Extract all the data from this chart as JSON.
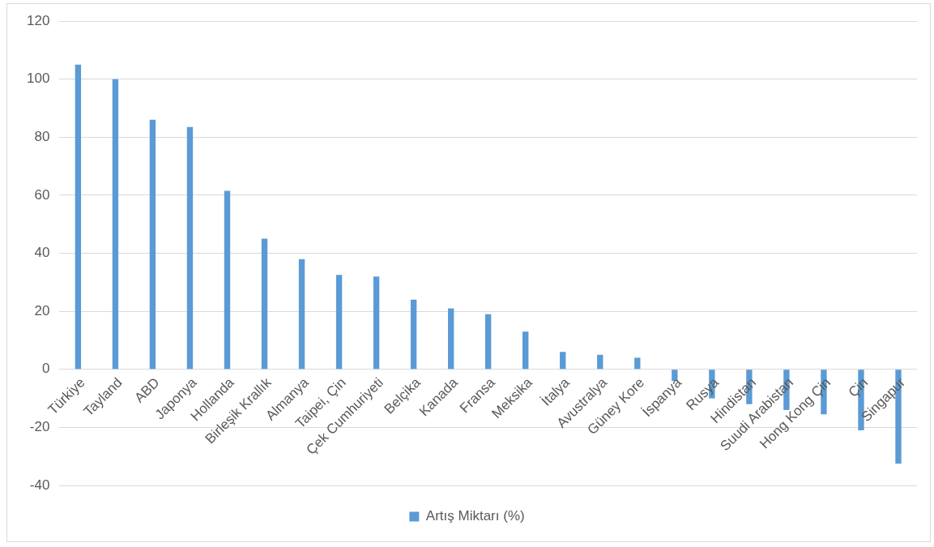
{
  "chart_data": {
    "type": "bar",
    "categories": [
      "Türkiye",
      "Tayland",
      "ABD",
      "Japonya",
      "Hollanda",
      "Birleşik Krallık",
      "Almanya",
      "Taipei, Çin",
      "Çek Cumhuriyeti",
      "Belçika",
      "Kanada",
      "Fransa",
      "Meksika",
      "İtalya",
      "Avustralya",
      "Güney Kore",
      "İspanya",
      "Rusya",
      "Hindistan",
      "Suudi Arabistan",
      "Hong Kong Çin",
      "Çin",
      "Singapur"
    ],
    "series": [
      {
        "name": "Artış Miktarı (%)",
        "color": "#5b9bd5",
        "values": [
          105,
          100,
          86,
          83.5,
          61.5,
          45,
          38,
          32.5,
          32,
          24,
          21,
          19,
          13,
          6,
          5,
          4,
          -4,
          -10,
          -12,
          -14,
          -15.5,
          -21,
          -32.5
        ]
      }
    ],
    "ylim": [
      -40,
      120
    ],
    "yticks": [
      -40,
      -20,
      0,
      20,
      40,
      60,
      80,
      100,
      120
    ],
    "grid": "y",
    "legend": "bottom"
  }
}
